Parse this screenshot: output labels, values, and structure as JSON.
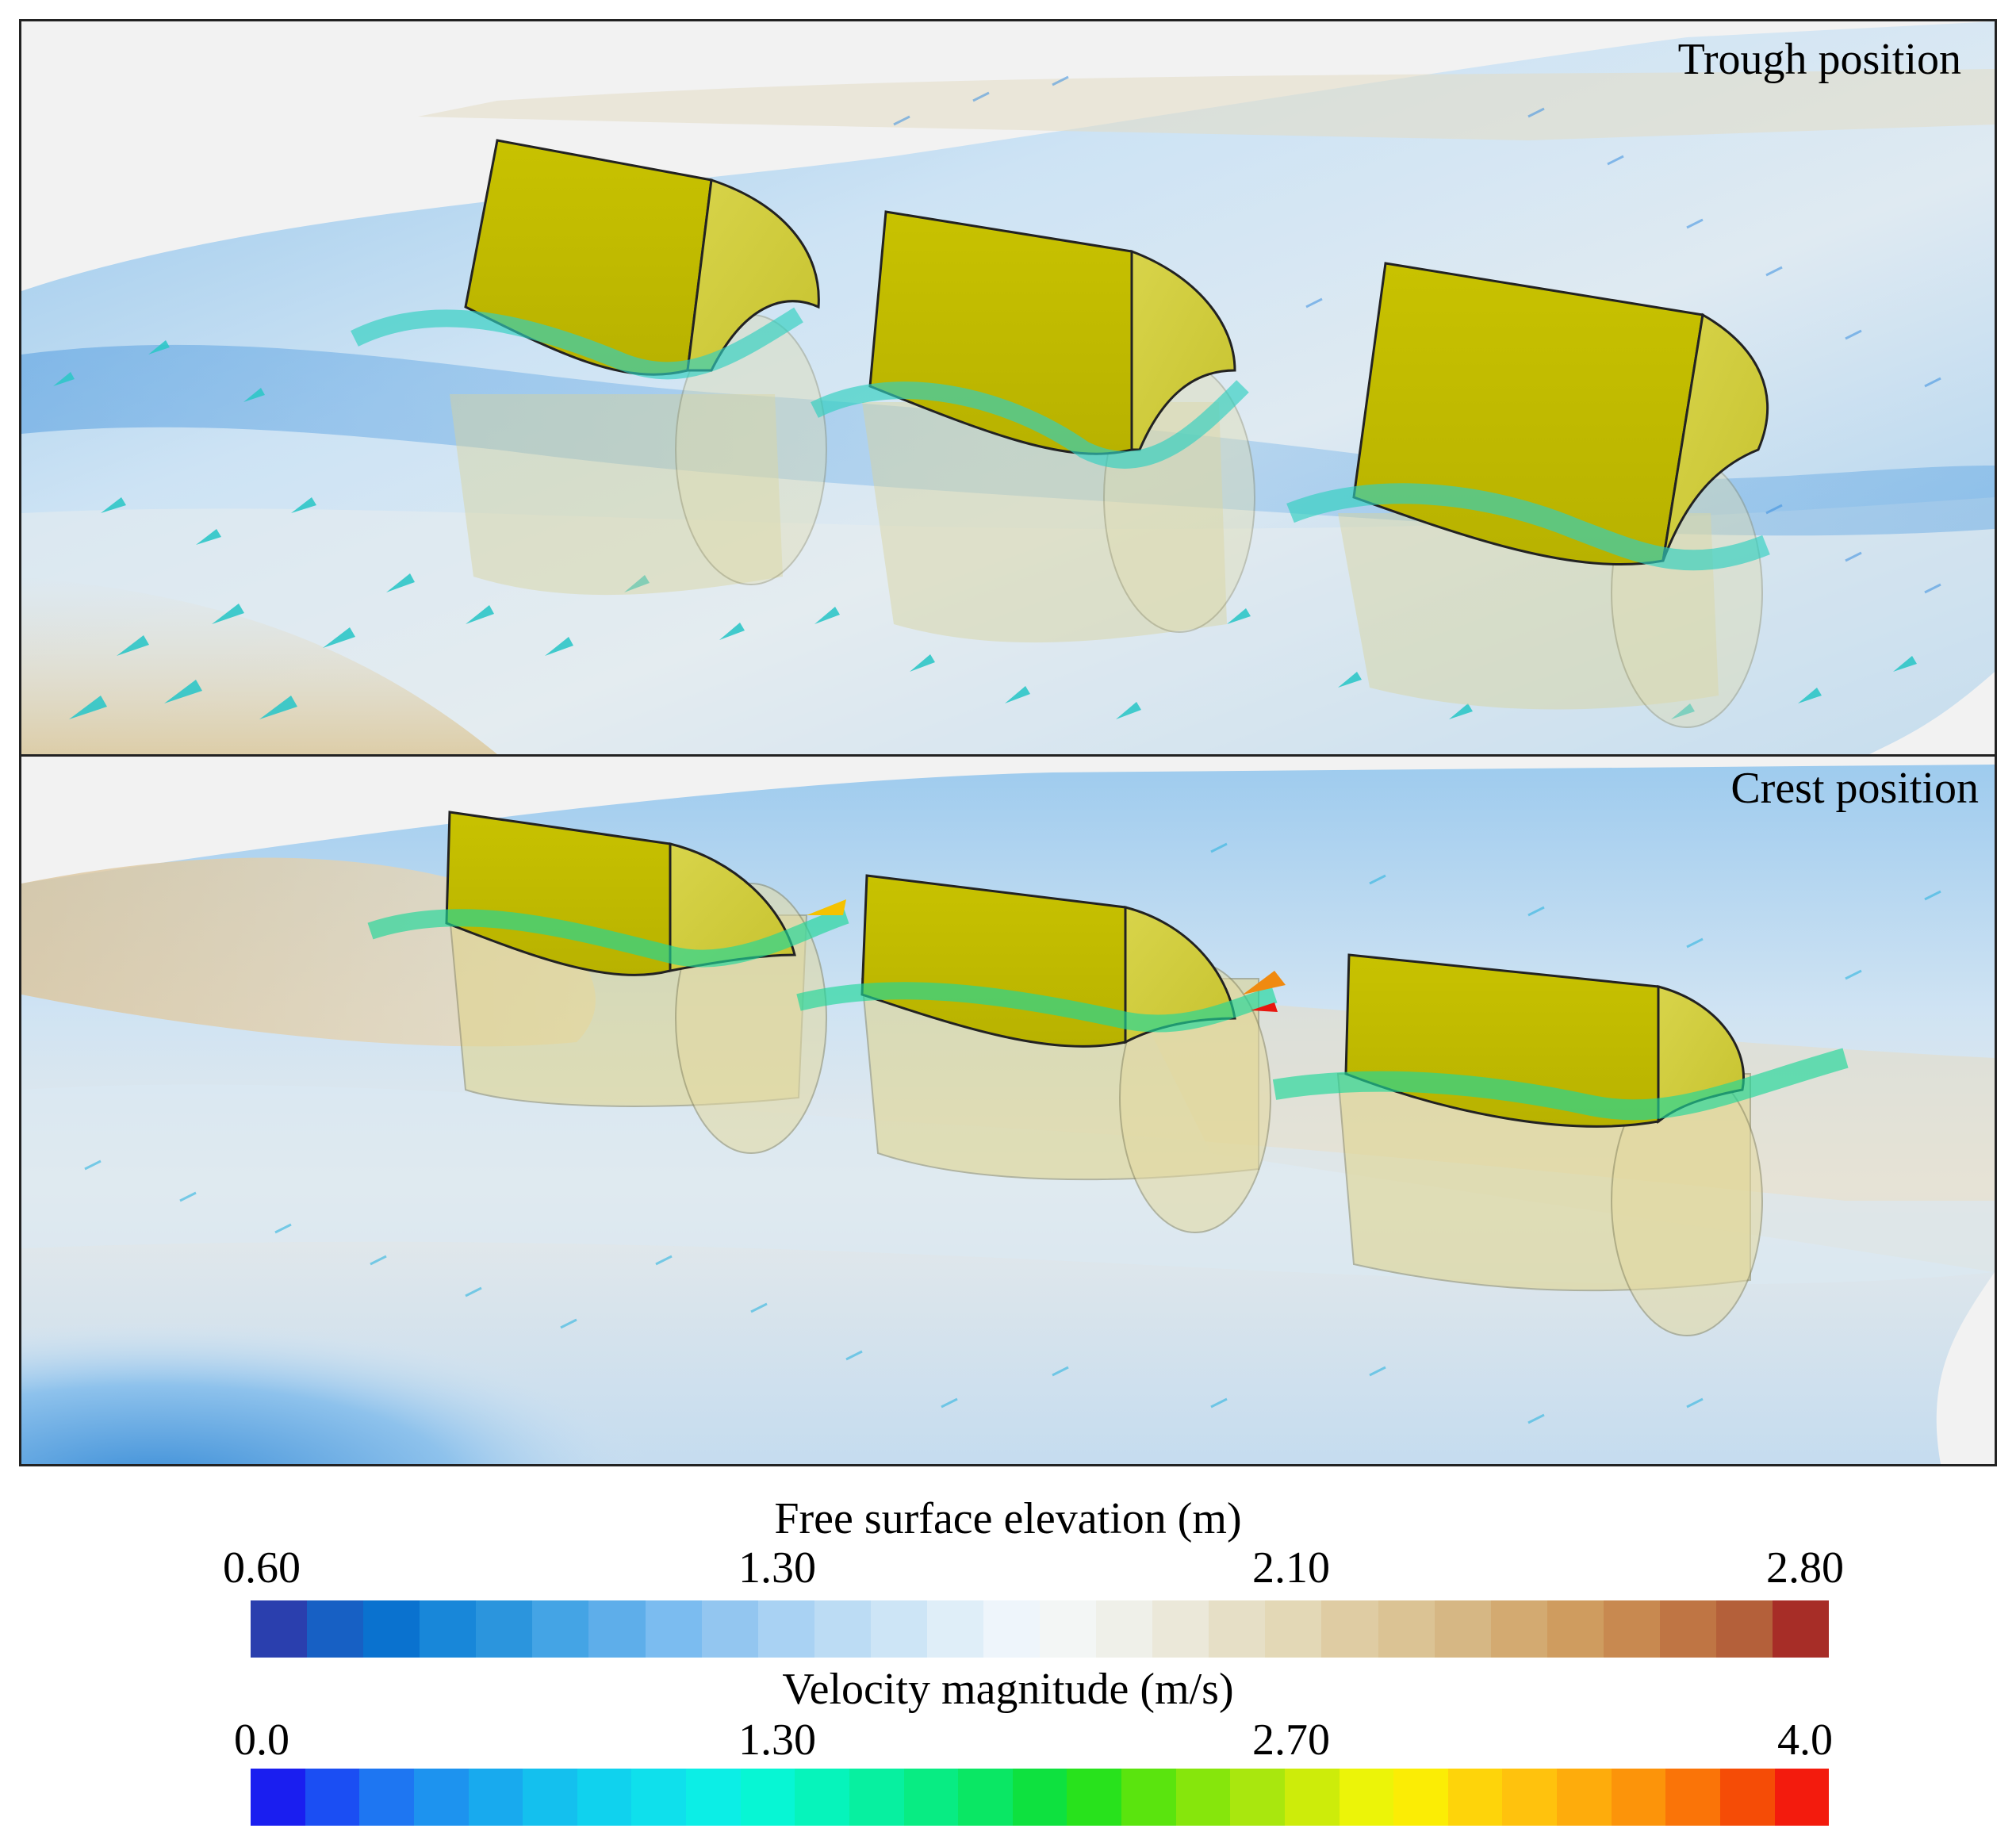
{
  "panels": {
    "top_label": "Trough position",
    "bottom_label": "Crest position"
  },
  "colorbars": {
    "elevation": {
      "title": "Free surface elevation (m)",
      "ticks": [
        "0.60",
        "1.30",
        "2.10",
        "2.80"
      ],
      "tick_values": [
        0.6,
        1.3,
        2.1,
        2.8
      ],
      "range": [
        0.6,
        2.8
      ],
      "colors": [
        "#2a3fae",
        "#1760c4",
        "#0a72cf",
        "#1887d9",
        "#2b95dd",
        "#44a4e5",
        "#5eaeea",
        "#7bbcf0",
        "#93c6f0",
        "#a9d2f3",
        "#bcdcf4",
        "#cde5f6",
        "#dfeef8",
        "#eef5fb",
        "#f3f6f5",
        "#eff0e9",
        "#ebe8d9",
        "#e6dfc6",
        "#e3d8b6",
        "#dfcca3",
        "#dbc394",
        "#d6b784",
        "#d3aa71",
        "#cf9c5f",
        "#c88950",
        "#bf7544",
        "#b4603a",
        "#a72d27"
      ]
    },
    "velocity": {
      "title": "Velocity magnitude (m/s)",
      "ticks": [
        "0.0",
        "1.30",
        "2.70",
        "4.0"
      ],
      "tick_values": [
        0.0,
        1.3,
        2.7,
        4.0
      ],
      "range": [
        0.0,
        4.0
      ],
      "colors": [
        "#1a1ef0",
        "#1b4ef3",
        "#1e76f2",
        "#1d93ef",
        "#18aaee",
        "#14c0ee",
        "#10d2ee",
        "#0fe0ec",
        "#0ceee6",
        "#07f6d4",
        "#06f4bb",
        "#07f0a0",
        "#08ec83",
        "#0ae764",
        "#0ee13f",
        "#28e21c",
        "#5ae40e",
        "#86e60c",
        "#a9e70e",
        "#cdec0a",
        "#ecf408",
        "#fbed05",
        "#fed40a",
        "#ffc20d",
        "#feac0c",
        "#fc940a",
        "#fa7408",
        "#f54c06",
        "#f31b0d"
      ]
    }
  }
}
